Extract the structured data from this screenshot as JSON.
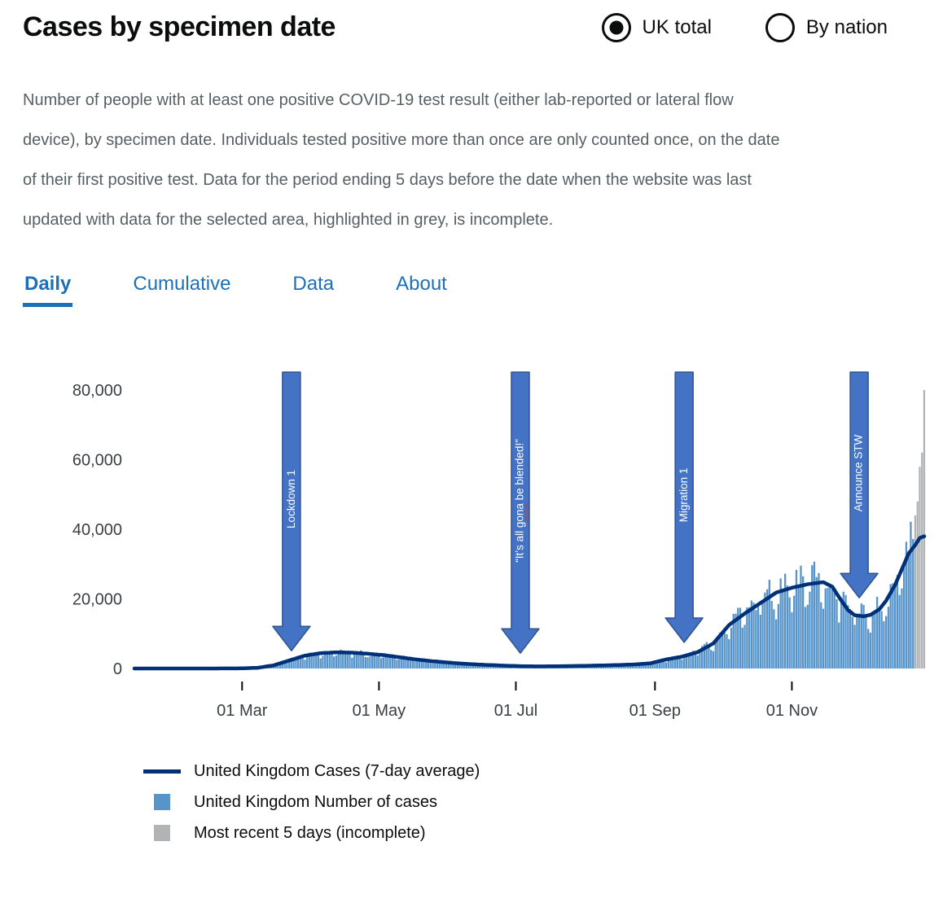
{
  "header": {
    "title": "Cases by specimen date",
    "radios": [
      {
        "label": "UK total",
        "selected": true
      },
      {
        "label": "By nation",
        "selected": false
      }
    ]
  },
  "description": "Number of people with at least one positive COVID-19 test result (either lab-reported or lateral flow device), by specimen date. Individuals tested positive more than once are only counted once, on the date of their first positive test. Data for the period ending 5 days before the date when the website was last updated with data for the selected area, highlighted in grey, is incomplete.",
  "tabs": [
    {
      "label": "Daily",
      "active": true
    },
    {
      "label": "Cumulative",
      "active": false
    },
    {
      "label": "Data",
      "active": false
    },
    {
      "label": "About",
      "active": false
    }
  ],
  "chart_data": {
    "type": "bar",
    "title": "Daily COVID-19 cases by specimen date, United Kingdom, 2020",
    "ylim": [
      0,
      80000
    ],
    "yticks": [
      {
        "value": 0,
        "label": "0"
      },
      {
        "value": 20000,
        "label": "20,000"
      },
      {
        "value": 40000,
        "label": "40,000"
      },
      {
        "value": 60000,
        "label": "60,000"
      },
      {
        "value": 80000,
        "label": "80,000"
      }
    ],
    "xticks": [
      {
        "day": 48,
        "label": "01 Mar"
      },
      {
        "day": 109,
        "label": "01 May"
      },
      {
        "day": 170,
        "label": "01 Jul"
      },
      {
        "day": 232,
        "label": "01 Sep"
      },
      {
        "day": 293,
        "label": "01 Nov"
      }
    ],
    "domain_days": 352,
    "series": [
      {
        "name": "United Kingdom Cases (7-day average)",
        "type": "line",
        "color": "#003078",
        "points": [
          [
            0,
            0
          ],
          [
            20,
            0
          ],
          [
            35,
            5
          ],
          [
            48,
            40
          ],
          [
            55,
            200
          ],
          [
            62,
            900
          ],
          [
            69,
            2300
          ],
          [
            76,
            3700
          ],
          [
            83,
            4400
          ],
          [
            90,
            4650
          ],
          [
            97,
            4550
          ],
          [
            104,
            4250
          ],
          [
            111,
            3850
          ],
          [
            118,
            3250
          ],
          [
            125,
            2650
          ],
          [
            132,
            2150
          ],
          [
            139,
            1750
          ],
          [
            146,
            1400
          ],
          [
            153,
            1150
          ],
          [
            160,
            950
          ],
          [
            167,
            780
          ],
          [
            174,
            640
          ],
          [
            181,
            600
          ],
          [
            188,
            650
          ],
          [
            195,
            710
          ],
          [
            202,
            790
          ],
          [
            209,
            890
          ],
          [
            216,
            1010
          ],
          [
            223,
            1160
          ],
          [
            230,
            1500
          ],
          [
            237,
            2600
          ],
          [
            244,
            3400
          ],
          [
            251,
            4700
          ],
          [
            258,
            7200
          ],
          [
            265,
            12500
          ],
          [
            272,
            15800
          ],
          [
            279,
            18800
          ],
          [
            286,
            21800
          ],
          [
            293,
            23200
          ],
          [
            300,
            24200
          ],
          [
            307,
            24800
          ],
          [
            311,
            23500
          ],
          [
            314,
            20500
          ],
          [
            318,
            16800
          ],
          [
            321,
            15300
          ],
          [
            325,
            15000
          ],
          [
            328,
            15400
          ],
          [
            332,
            17000
          ],
          [
            335,
            19500
          ],
          [
            339,
            24000
          ],
          [
            342,
            28500
          ],
          [
            345,
            33000
          ],
          [
            348,
            35500
          ],
          [
            350,
            37500
          ],
          [
            352,
            38000
          ]
        ]
      },
      {
        "name": "United Kingdom Number of cases",
        "type": "bar",
        "color": "#5694CA",
        "end_day": 347
      },
      {
        "name": "Most recent 5 days (incomplete)",
        "type": "bar",
        "color": "#B1B4B6",
        "points": [
          [
            348,
            44000
          ],
          [
            349,
            48000
          ],
          [
            350,
            58000
          ],
          [
            351,
            62000
          ],
          [
            352,
            80000
          ]
        ]
      }
    ],
    "annotations": [
      {
        "label": "Lockdown 1",
        "day": 70,
        "tip_value": 5100
      },
      {
        "label": "“It’s all gona be blended!”",
        "day": 172,
        "tip_value": 4400,
        "misspelled_word": "gona"
      },
      {
        "label": "Migration 1",
        "day": 245,
        "tip_value": 7500
      },
      {
        "label": "Announce STW",
        "day": 323,
        "tip_value": 20300
      }
    ],
    "annotation_style": {
      "fill": "#4472C4",
      "stroke": "#2F528F",
      "text_color": "#FFFFFF"
    }
  },
  "legend": {
    "items": [
      {
        "label": "United Kingdom Cases (7-day average)",
        "shape": "line",
        "color": "#003078"
      },
      {
        "label": "United Kingdom Number of cases",
        "shape": "square",
        "color": "#5694CA"
      },
      {
        "label": "Most recent 5 days (incomplete)",
        "shape": "square",
        "color": "#B1B4B6"
      }
    ]
  },
  "colors": {
    "text": "#0b0c0c",
    "secondary_text": "#565f63",
    "accent_blue": "#1d70b8",
    "bar_blue": "#5694CA",
    "line_navy": "#003078",
    "incomplete_grey": "#B1B4B6",
    "arrow_fill": "#4472C4",
    "arrow_stroke": "#2F528F",
    "squiggle_red": "#d4351c"
  }
}
